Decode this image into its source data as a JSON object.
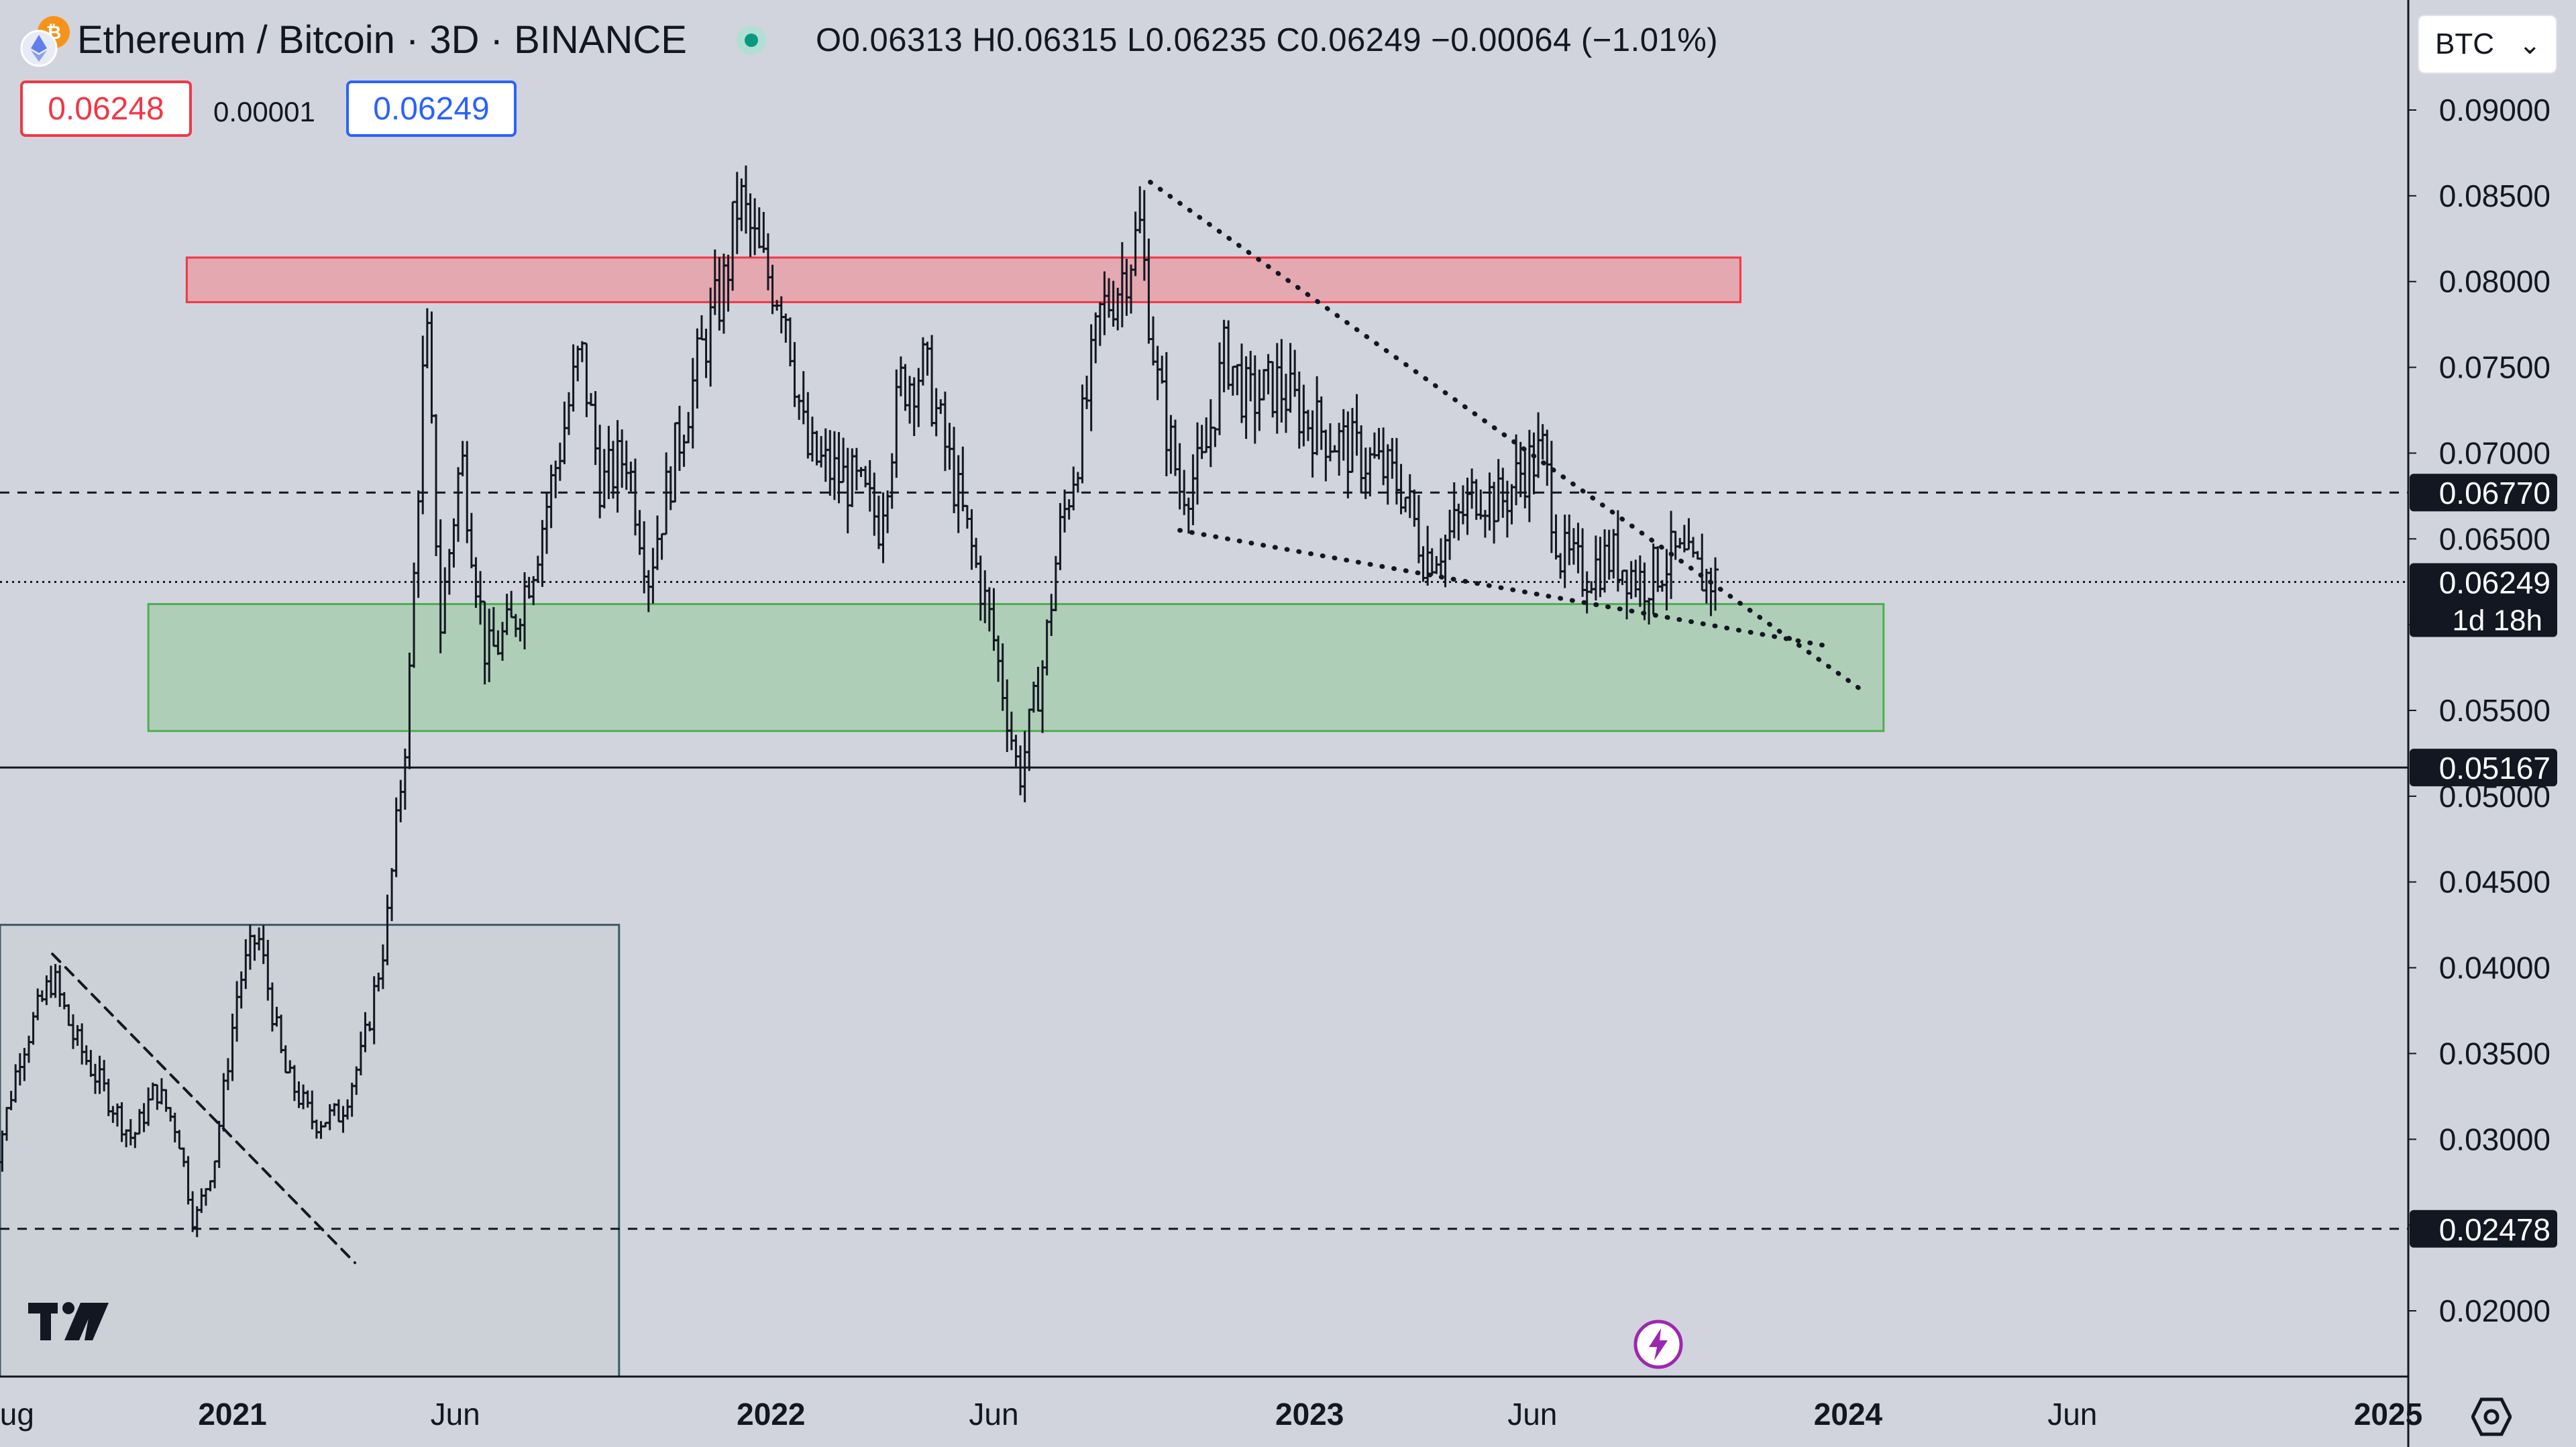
{
  "header": {
    "symbol_title": "Ethereum / Bitcoin · 3D · BINANCE",
    "ohlc_text": "O0.06313  H0.06315  L0.06235  C0.06249  −0.00064 (−1.01%)",
    "sell_price": "0.06248",
    "spread": "0.00001",
    "buy_price": "0.06249",
    "currency": "BTC"
  },
  "colors": {
    "background": "#d1d4dc",
    "candle": "#131722",
    "sell": "#f23645",
    "buy": "#2962ff",
    "resistance_zone": "#e8a0a8",
    "support_zone": "#a9ccb0",
    "live": "#089981",
    "accent_bolt": "#9c27b0"
  },
  "chart_data": {
    "type": "ohlc",
    "symbol": "ETH/BTC",
    "exchange": "BINANCE",
    "interval": "3D",
    "y_scale": "linear",
    "ylim": [
      0.0135,
      0.0925
    ],
    "y_ticks": [
      "0.02000",
      "0.02500",
      "0.03000",
      "0.03500",
      "0.04000",
      "0.04500",
      "0.05000",
      "0.05500",
      "0.06000",
      "0.06500",
      "0.07000",
      "0.07500",
      "0.08000",
      "0.08500",
      "0.09000"
    ],
    "x_ticks": [
      "Aug",
      "2021",
      "Jun",
      "2022",
      "Jun",
      "2023",
      "Jun",
      "2024",
      "Jun",
      "2025"
    ],
    "x_tick_dates": [
      "2020-08-01",
      "2021-01-01",
      "2021-06-01",
      "2022-01-01",
      "2022-06-01",
      "2023-01-01",
      "2023-06-01",
      "2024-01-01",
      "2024-06-01",
      "2025-01-01"
    ],
    "x_range": [
      "2020-07-20",
      "2025-02-10"
    ],
    "price_tags": [
      {
        "label": "0.06770",
        "value": 0.0677,
        "line": "dashed"
      },
      {
        "label": "0.06249",
        "value": 0.06249,
        "line": "dotted",
        "sub": "1d 18h"
      },
      {
        "label": "0.05167",
        "value": 0.05167,
        "line": "solid"
      },
      {
        "label": "0.02478",
        "value": 0.02478,
        "line": "dashed"
      }
    ],
    "zones": [
      {
        "name": "resistance",
        "from": "2020-12-01",
        "to": "2023-10-20",
        "low": 0.0788,
        "high": 0.0814
      },
      {
        "name": "support",
        "from": "2020-11-05",
        "to": "2024-01-25",
        "low": 0.0538,
        "high": 0.0612
      },
      {
        "name": "range",
        "from": "2020-07-20",
        "to": "2021-09-20",
        "low": 0.0135,
        "high": 0.0425
      }
    ],
    "trendlines": [
      {
        "from": [
          "2022-09-15",
          0.0858
        ],
        "to": [
          "2024-01-10",
          0.0562
        ],
        "style": "dotted"
      },
      {
        "from": [
          "2022-10-05",
          0.0655
        ],
        "to": [
          "2023-12-15",
          0.0588
        ],
        "style": "dotted"
      },
      {
        "from": [
          "2020-09-01",
          0.0408
        ],
        "to": [
          "2021-03-25",
          0.0228
        ],
        "style": "dashed"
      }
    ],
    "anchors": [
      [
        "2020-07-20",
        0.027
      ],
      [
        "2020-08-10",
        0.035
      ],
      [
        "2020-09-01",
        0.0395
      ],
      [
        "2020-09-15",
        0.036
      ],
      [
        "2020-10-05",
        0.033
      ],
      [
        "2020-10-25",
        0.03
      ],
      [
        "2020-11-10",
        0.033
      ],
      [
        "2020-11-25",
        0.0305
      ],
      [
        "2020-12-06",
        0.025
      ],
      [
        "2020-12-20",
        0.029
      ],
      [
        "2021-01-05",
        0.039
      ],
      [
        "2021-01-18",
        0.042
      ],
      [
        "2021-02-05",
        0.034
      ],
      [
        "2021-02-25",
        0.031
      ],
      [
        "2021-03-15",
        0.0315
      ],
      [
        "2021-03-30",
        0.035
      ],
      [
        "2021-04-15",
        0.042
      ],
      [
        "2021-04-30",
        0.055
      ],
      [
        "2021-05-12",
        0.078
      ],
      [
        "2021-05-22",
        0.06
      ],
      [
        "2021-06-05",
        0.07
      ],
      [
        "2021-06-22",
        0.058
      ],
      [
        "2021-07-10",
        0.06
      ],
      [
        "2021-07-25",
        0.064
      ],
      [
        "2021-08-10",
        0.07
      ],
      [
        "2021-08-25",
        0.076
      ],
      [
        "2021-09-08",
        0.068
      ],
      [
        "2021-09-25",
        0.07
      ],
      [
        "2021-10-10",
        0.063
      ],
      [
        "2021-10-28",
        0.07
      ],
      [
        "2021-11-15",
        0.076
      ],
      [
        "2021-12-01",
        0.08
      ],
      [
        "2021-12-10",
        0.085
      ],
      [
        "2021-12-25",
        0.081
      ],
      [
        "2022-01-10",
        0.079
      ],
      [
        "2022-01-25",
        0.07
      ],
      [
        "2022-02-10",
        0.069
      ],
      [
        "2022-02-28",
        0.068
      ],
      [
        "2022-03-15",
        0.066
      ],
      [
        "2022-03-30",
        0.074
      ],
      [
        "2022-04-15",
        0.075
      ],
      [
        "2022-04-30",
        0.07
      ],
      [
        "2022-05-15",
        0.065
      ],
      [
        "2022-05-30",
        0.06
      ],
      [
        "2022-06-12",
        0.054
      ],
      [
        "2022-06-18",
        0.051
      ],
      [
        "2022-07-05",
        0.058
      ],
      [
        "2022-07-15",
        0.065
      ],
      [
        "2022-07-30",
        0.071
      ],
      [
        "2022-08-12",
        0.078
      ],
      [
        "2022-08-25",
        0.08
      ],
      [
        "2022-09-08",
        0.083
      ],
      [
        "2022-09-20",
        0.074
      ],
      [
        "2022-10-05",
        0.068
      ],
      [
        "2022-10-20",
        0.069
      ],
      [
        "2022-11-05",
        0.076
      ],
      [
        "2022-11-20",
        0.073
      ],
      [
        "2022-12-10",
        0.074
      ],
      [
        "2022-12-30",
        0.072
      ],
      [
        "2023-01-15",
        0.071
      ],
      [
        "2023-02-01",
        0.07
      ],
      [
        "2023-02-20",
        0.069
      ],
      [
        "2023-03-05",
        0.068
      ],
      [
        "2023-03-20",
        0.064
      ],
      [
        "2023-04-05",
        0.065
      ],
      [
        "2023-04-25",
        0.068
      ],
      [
        "2023-05-10",
        0.067
      ],
      [
        "2023-05-25",
        0.069
      ],
      [
        "2023-06-08",
        0.07
      ],
      [
        "2023-06-20",
        0.064
      ],
      [
        "2023-07-05",
        0.063
      ],
      [
        "2023-07-25",
        0.064
      ],
      [
        "2023-08-15",
        0.0625
      ],
      [
        "2023-09-05",
        0.064
      ],
      [
        "2023-09-20",
        0.063
      ],
      [
        "2023-10-05",
        0.0625
      ]
    ]
  }
}
